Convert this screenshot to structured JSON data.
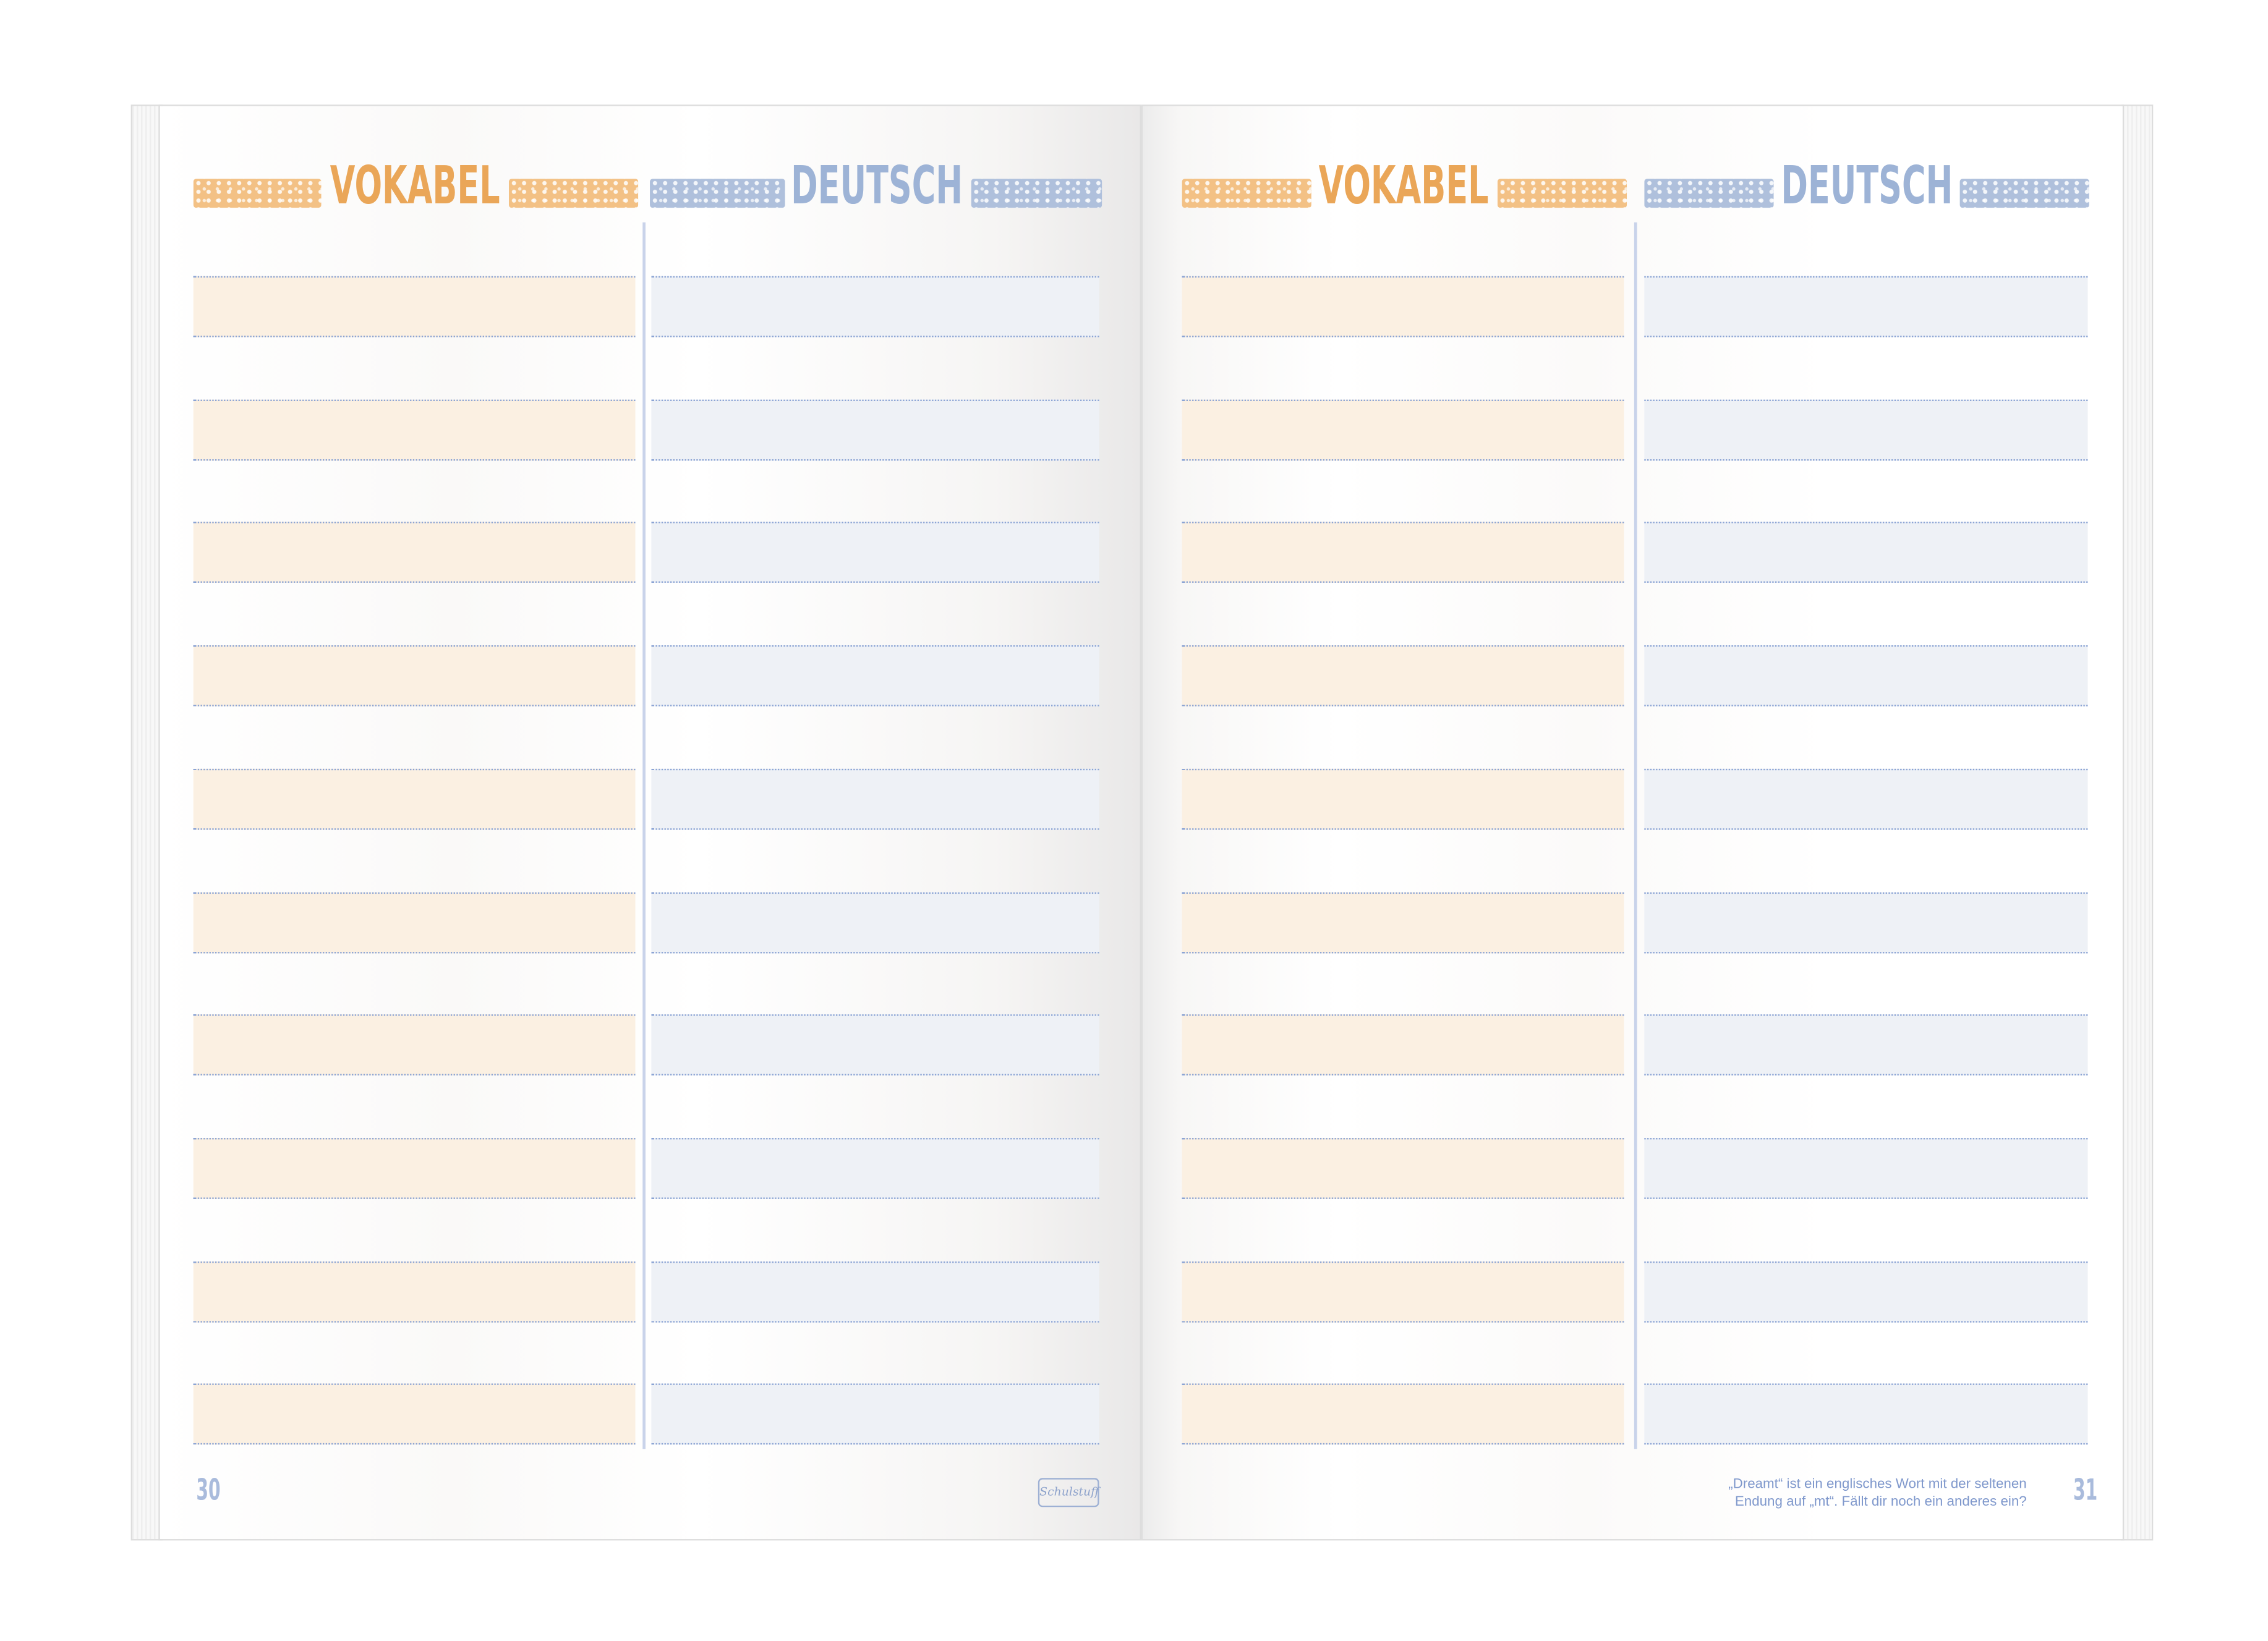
{
  "spread": {
    "left_page": {
      "number": "30",
      "headers": {
        "vocab": "VOKABEL",
        "translation": "DEUTSCH"
      },
      "rows": 10,
      "logo": "Schulstuff"
    },
    "right_page": {
      "number": "31",
      "headers": {
        "vocab": "VOKABEL",
        "translation": "DEUTSCH"
      },
      "rows": 10,
      "footer_note_line1": "„Dreamt“ ist ein englisches Wort mit der seltenen",
      "footer_note_line2": "Endung auf „mt“. Fällt dir noch ein anderes ein?"
    }
  },
  "colors": {
    "orange": "#eaa658",
    "blue": "#9db3d6",
    "orange_band": "#fbf0e2",
    "blue_band": "#eef1f6"
  }
}
